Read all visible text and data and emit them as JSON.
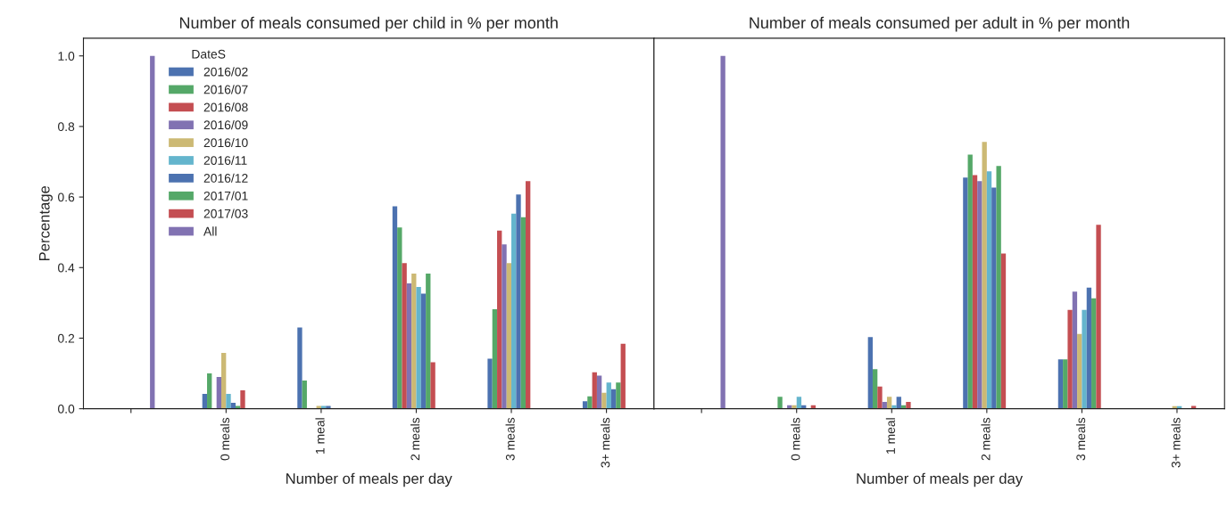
{
  "chart_data": [
    {
      "type": "bar",
      "title": "Number of meals consumed per child in % per month",
      "xlabel": "Number of meals per day",
      "ylabel": "Percentage",
      "legend_title": "DateS",
      "legend": "top left",
      "categories": [
        null,
        "0 meals",
        "1 meal",
        "2 meals",
        "3 meals",
        "3+ meals"
      ],
      "ylim": [
        0,
        1.05
      ],
      "yticks": [
        {
          "value": 0,
          "label": "0.0"
        },
        0.2,
        0.4,
        0.6,
        0.8,
        {
          "value": 1,
          "label": "1.0"
        }
      ],
      "series": [
        {
          "name": "2016/02",
          "color": "#4c72b0",
          "values": [
            0,
            0.042,
            0.23,
            0.574,
            0.142,
            0.021
          ]
        },
        {
          "name": "2016/07",
          "color": "#55a868",
          "values": [
            0,
            0.1,
            0.08,
            0.514,
            0.282,
            0.035
          ]
        },
        {
          "name": "2016/08",
          "color": "#c44e52",
          "values": [
            0,
            0,
            0,
            0.413,
            0.505,
            0.103
          ]
        },
        {
          "name": "2016/09",
          "color": "#8172b2",
          "values": [
            0,
            0.09,
            0,
            0.355,
            0.466,
            0.094
          ]
        },
        {
          "name": "2016/10",
          "color": "#ccb974",
          "values": [
            0,
            0.158,
            0.008,
            0.383,
            0.413,
            0.045
          ]
        },
        {
          "name": "2016/11",
          "color": "#64b5cd",
          "values": [
            0,
            0.042,
            0.008,
            0.345,
            0.553,
            0.074
          ]
        },
        {
          "name": "2016/12",
          "color": "#4c72b0",
          "values": [
            0,
            0.017,
            0.008,
            0.326,
            0.607,
            0.055
          ]
        },
        {
          "name": "2017/01",
          "color": "#55a868",
          "values": [
            0,
            0.008,
            0,
            0.383,
            0.543,
            0.074
          ]
        },
        {
          "name": "2017/03",
          "color": "#c44e52",
          "values": [
            0,
            0.052,
            0,
            0.132,
            0.645,
            0.184
          ]
        },
        {
          "name": "All",
          "color": "#8172b2",
          "values": [
            1.0,
            0,
            0,
            0,
            0,
            0
          ]
        }
      ]
    },
    {
      "type": "bar",
      "title": "Number of meals consumed per adult in % per month",
      "xlabel": "Number of meals per day",
      "tick_labels": "x",
      "categories": [
        null,
        "0 meals",
        "1 meal",
        "2 meals",
        "3 meals",
        "3+ meals"
      ],
      "ylim": [
        0,
        1.05
      ],
      "series": [
        {
          "color": "#4c72b0",
          "values": [
            0,
            0,
            0.203,
            0.655,
            0.14,
            0
          ]
        },
        {
          "color": "#55a868",
          "values": [
            0,
            0.034,
            0.112,
            0.72,
            0.14,
            0
          ]
        },
        {
          "color": "#c44e52",
          "values": [
            0,
            0,
            0.063,
            0.662,
            0.28,
            0
          ]
        },
        {
          "color": "#8172b2",
          "values": [
            0,
            0.01,
            0.019,
            0.645,
            0.332,
            0
          ]
        },
        {
          "color": "#ccb974",
          "values": [
            0,
            0.01,
            0.034,
            0.756,
            0.212,
            0.007
          ]
        },
        {
          "color": "#64b5cd",
          "values": [
            0,
            0.034,
            0.01,
            0.673,
            0.28,
            0.007
          ]
        },
        {
          "color": "#4c72b0",
          "values": [
            0,
            0.01,
            0.034,
            0.627,
            0.343,
            0
          ]
        },
        {
          "color": "#55a868",
          "values": [
            0,
            0,
            0.01,
            0.688,
            0.313,
            0
          ]
        },
        {
          "color": "#c44e52",
          "values": [
            0,
            0.01,
            0.019,
            0.44,
            0.521,
            0.008
          ]
        },
        {
          "color": "#8172b2",
          "values": [
            1.0,
            0,
            0,
            0,
            0,
            0
          ]
        }
      ]
    }
  ]
}
